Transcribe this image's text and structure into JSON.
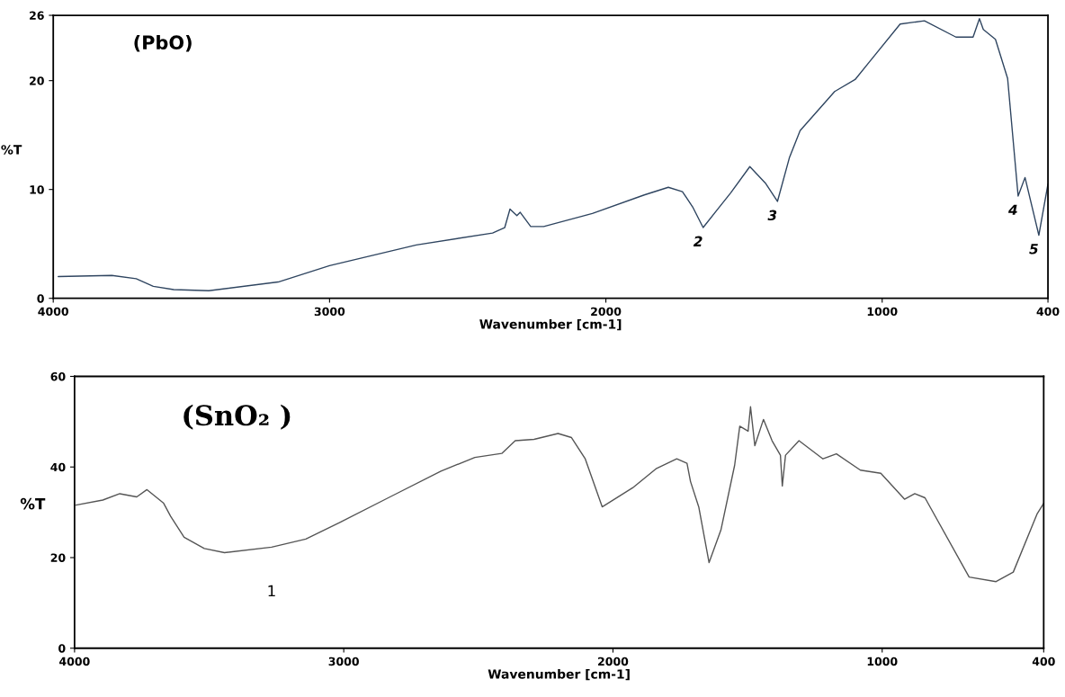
{
  "chart_data": [
    {
      "type": "line",
      "xlabel": "Wavenumber [cm-1]",
      "ylabel": "%T",
      "xlim": [
        4000,
        400
      ],
      "ylim": [
        0,
        26
      ],
      "xticks": [
        4000,
        3000,
        2000,
        1000,
        400
      ],
      "yticks": [
        0,
        10,
        20,
        26
      ],
      "annotations": [
        "(PbO)",
        {
          "text": "2",
          "x": 1648,
          "y": 6.5
        },
        {
          "text": "3",
          "x": 1379,
          "y": 8.9
        },
        {
          "text": "4",
          "x": 508,
          "y": 9.4
        },
        {
          "text": "5",
          "x": 433,
          "y": 5.8
        }
      ],
      "series": [
        {
          "color": "#2f4560",
          "x": [
            3982,
            3788,
            3700,
            3638,
            3564,
            3437,
            3186,
            3000,
            2686,
            2410,
            2366,
            2347,
            2322,
            2310,
            2272,
            2225,
            2049,
            1861,
            1774,
            1723,
            1686,
            1648,
            1598,
            1548,
            1479,
            1423,
            1379,
            1336,
            1297,
            1172,
            1098,
            1047,
            935,
            847,
            733,
            671,
            648,
            634,
            590,
            546,
            508,
            483,
            433,
            400
          ],
          "values": [
            2.0,
            2.1,
            1.8,
            1.1,
            0.8,
            0.7,
            1.5,
            3.0,
            4.9,
            6.0,
            6.5,
            8.2,
            7.6,
            7.9,
            6.6,
            6.6,
            7.8,
            9.5,
            10.2,
            9.8,
            8.4,
            6.5,
            8.1,
            9.7,
            12.1,
            10.6,
            8.9,
            12.9,
            15.4,
            19.0,
            20.1,
            21.7,
            25.2,
            25.5,
            24.0,
            24.0,
            25.7,
            24.7,
            23.8,
            20.2,
            9.4,
            11.1,
            5.8,
            10.5
          ]
        }
      ]
    },
    {
      "type": "line",
      "xlabel": "Wavenumber [cm-1]",
      "ylabel": "%T",
      "xlim": [
        4000,
        400
      ],
      "ylim": [
        0,
        60
      ],
      "xticks": [
        4000,
        3000,
        2000,
        1000,
        400
      ],
      "yticks": [
        0,
        20,
        40,
        60
      ],
      "annotations": [
        "(SnO₂ )",
        {
          "text": "1",
          "x": 3268,
          "y": 22.3
        }
      ],
      "series": [
        {
          "color": "#555555",
          "x": [
            3995,
            3895,
            3832,
            3769,
            3731,
            3669,
            3643,
            3593,
            3518,
            3443,
            3268,
            3141,
            3016,
            2828,
            2639,
            2513,
            2413,
            2363,
            2293,
            2204,
            2154,
            2103,
            2040,
            1927,
            1838,
            1763,
            1725,
            1712,
            1681,
            1643,
            1599,
            1548,
            1529,
            1498,
            1489,
            1473,
            1441,
            1409,
            1378,
            1371,
            1359,
            1309,
            1220,
            1170,
            1081,
            1005,
            917,
            879,
            841,
            677,
            577,
            513,
            425,
            400
          ],
          "values": [
            31.6,
            32.7,
            34.1,
            33.4,
            35.0,
            32.0,
            29.1,
            24.5,
            22.0,
            21.1,
            22.3,
            24.1,
            27.7,
            33.4,
            39.1,
            42.1,
            43.0,
            45.8,
            46.1,
            47.4,
            46.5,
            41.8,
            31.2,
            35.4,
            39.7,
            41.8,
            40.8,
            36.8,
            31.1,
            18.9,
            26.1,
            40.4,
            49.0,
            47.9,
            53.3,
            44.7,
            50.5,
            45.8,
            42.6,
            35.8,
            42.6,
            45.8,
            41.8,
            42.9,
            39.3,
            38.6,
            32.9,
            34.1,
            33.2,
            15.7,
            14.7,
            16.8,
            29.6,
            32
          ]
        }
      ]
    }
  ]
}
